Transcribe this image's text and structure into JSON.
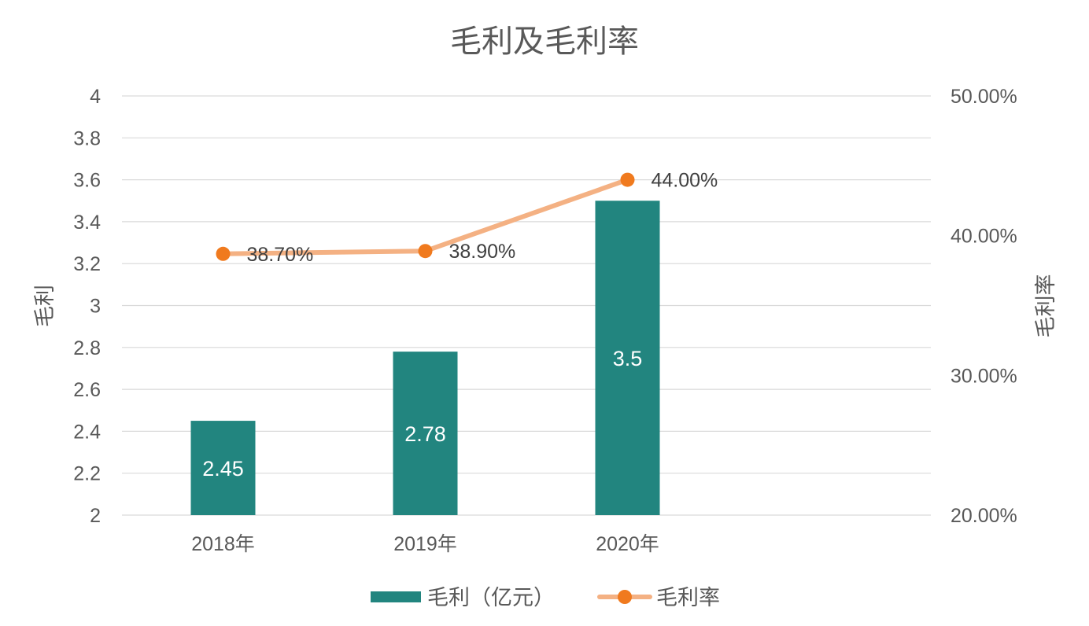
{
  "chart_data": {
    "type": "bar",
    "title": "毛利及毛利率",
    "categories": [
      "2018年",
      "2019年",
      "2020年"
    ],
    "series": [
      {
        "name": "毛利（亿元）",
        "type": "bar",
        "axis": "left",
        "values": [
          2.45,
          2.78,
          3.5
        ],
        "labels": [
          "2.45",
          "2.78",
          "3.5"
        ],
        "color": "#22857f"
      },
      {
        "name": "毛利率",
        "type": "line",
        "axis": "right",
        "values": [
          38.7,
          38.9,
          44.0
        ],
        "labels": [
          "38.70%",
          "38.90%",
          "44.00%"
        ],
        "line_color": "#f4b183",
        "marker_color": "#f07a1e"
      }
    ],
    "y_left": {
      "label": "毛利",
      "ylim": [
        2,
        4
      ],
      "ticks": [
        2,
        2.2,
        2.4,
        2.6,
        2.8,
        3,
        3.2,
        3.4,
        3.6,
        3.8,
        4
      ],
      "tick_labels": [
        "2",
        "2.2",
        "2.4",
        "2.6",
        "2.8",
        "3",
        "3.2",
        "3.4",
        "3.6",
        "3.8",
        "4"
      ]
    },
    "y_right": {
      "label": "毛利率",
      "ylim": [
        20,
        50
      ],
      "ticks": [
        20,
        30,
        40,
        50
      ],
      "tick_labels": [
        "20.00%",
        "30.00%",
        "40.00%",
        "50.00%"
      ]
    },
    "grid": true,
    "legend": "bottom"
  }
}
